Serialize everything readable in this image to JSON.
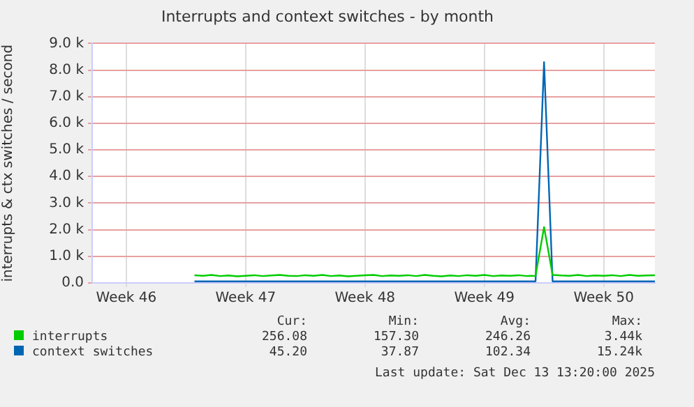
{
  "chart_data": {
    "type": "line",
    "title": "Interrupts and context switches - by month",
    "ylabel": "interrupts & ctx switches / second",
    "categories": [
      null,
      null,
      null,
      null,
      "Week 46",
      null,
      null,
      null,
      null,
      null,
      null,
      null,
      null,
      null,
      null,
      null,
      null,
      null,
      "Week 47",
      null,
      null,
      null,
      null,
      null,
      null,
      null,
      null,
      null,
      null,
      null,
      null,
      null,
      "Week 48",
      null,
      null,
      null,
      null,
      null,
      null,
      null,
      null,
      null,
      null,
      null,
      null,
      null,
      "Week 49",
      null,
      null,
      null,
      null,
      null,
      null,
      null,
      null,
      null,
      null,
      null,
      null,
      null,
      "Week 50",
      null,
      null,
      null,
      null,
      null,
      null
    ],
    "series": [
      {
        "name": "interrupts",
        "color": "#00cc00",
        "values": [
          null,
          null,
          null,
          null,
          null,
          null,
          null,
          null,
          null,
          null,
          null,
          null,
          290,
          270,
          300,
          260,
          280,
          250,
          270,
          290,
          260,
          280,
          300,
          270,
          260,
          290,
          270,
          300,
          260,
          280,
          250,
          270,
          290,
          300,
          260,
          280,
          270,
          290,
          260,
          300,
          270,
          250,
          280,
          260,
          290,
          270,
          300,
          260,
          280,
          270,
          290,
          260,
          270,
          2100,
          300,
          280,
          270,
          300,
          260,
          280,
          270,
          290,
          260,
          300,
          270,
          280,
          290
        ]
      },
      {
        "name": "context switches",
        "color": "#0066b3",
        "values": [
          null,
          null,
          null,
          null,
          null,
          null,
          null,
          null,
          null,
          null,
          null,
          null,
          60,
          60,
          60,
          60,
          60,
          60,
          60,
          60,
          60,
          60,
          60,
          60,
          60,
          60,
          60,
          60,
          60,
          60,
          60,
          60,
          60,
          60,
          60,
          60,
          60,
          60,
          60,
          60,
          60,
          60,
          60,
          60,
          60,
          60,
          60,
          60,
          60,
          60,
          60,
          60,
          60,
          8300,
          60,
          60,
          60,
          60,
          60,
          60,
          60,
          60,
          60,
          60,
          60,
          60,
          60
        ]
      }
    ],
    "ylim": [
      0,
      9000
    ],
    "yticks": [
      {
        "value": 0,
        "label": "0.0"
      },
      {
        "value": 1000,
        "label": "1.0 k"
      },
      {
        "value": 2000,
        "label": "2.0 k"
      },
      {
        "value": 3000,
        "label": "3.0 k"
      },
      {
        "value": 4000,
        "label": "4.0 k"
      },
      {
        "value": 5000,
        "label": "5.0 k"
      },
      {
        "value": 6000,
        "label": "6.0 k"
      },
      {
        "value": 7000,
        "label": "7.0 k"
      },
      {
        "value": 8000,
        "label": "8.0 k"
      },
      {
        "value": 9000,
        "label": "9.0 k"
      }
    ],
    "grid": true,
    "legend": "bottom",
    "marker": "none",
    "line_style": "solid",
    "annotations": [
      "Cur:",
      "Min:",
      "Avg:",
      "Max:",
      "256.08",
      "157.30",
      "246.26",
      "3.44k",
      "45.20",
      "37.87",
      "102.34",
      "15.24k",
      "Last update: Sat Dec 13 13:20:00 2025"
    ]
  }
}
